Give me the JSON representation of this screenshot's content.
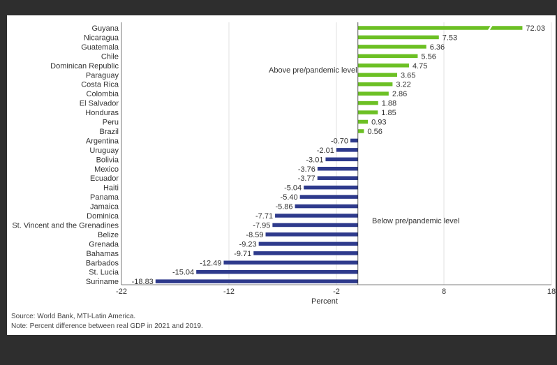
{
  "chart_data": {
    "type": "bar",
    "orientation": "horizontal",
    "categories": [
      "Guyana",
      "Nicaragua",
      "Guatemala",
      "Chile",
      "Dominican Republic",
      "Paraguay",
      "Costa Rica",
      "Colombia",
      "El Salvador",
      "Honduras",
      "Peru",
      "Brazil",
      "Argentina",
      "Uruguay",
      "Bolivia",
      "Mexico",
      "Ecuador",
      "Haiti",
      "Panama",
      "Jamaica",
      "Dominica",
      "St. Vincent and the Grenadines",
      "Belize",
      "Grenada",
      "Bahamas",
      "Barbados",
      "St. Lucia",
      "Suriname"
    ],
    "values": [
      72.03,
      7.53,
      6.36,
      5.56,
      4.75,
      3.65,
      3.22,
      2.86,
      1.88,
      1.85,
      0.93,
      0.56,
      -0.7,
      -2.01,
      -3.01,
      -3.76,
      -3.77,
      -5.04,
      -5.4,
      -5.86,
      -7.71,
      -7.95,
      -8.59,
      -9.23,
      -9.71,
      -12.49,
      -15.04,
      -18.83
    ],
    "value_labels": [
      "72.03",
      "7.53",
      "6.36",
      "5.56",
      "4.75",
      "3.65",
      "3.22",
      "2.86",
      "1.88",
      "1.85",
      "0.93",
      "0.56",
      "-0.70",
      "-2.01",
      "-3.01",
      "-3.76",
      "-3.77",
      "-5.04",
      "-5.40",
      "-5.86",
      "-7.71",
      "-7.95",
      "-8.59",
      "-9.23",
      "-9.71",
      "-12.49",
      "-15.04",
      "-18.83"
    ],
    "xlabel": "Percent",
    "xlim": [
      -22,
      18
    ],
    "xticks": [
      -22,
      -12,
      -2,
      8,
      18
    ],
    "axis_break": true,
    "grid": "vertical",
    "annotations": {
      "above": "Above pre/pandemic level",
      "below": "Below pre/pandemic level"
    },
    "colors": {
      "positive": "#6cc024",
      "negative": "#2e3a8c"
    }
  },
  "source": "Source: World Bank, MTI-Latin America.",
  "note": "Note: Percent difference between real GDP in 2021 and 2019."
}
